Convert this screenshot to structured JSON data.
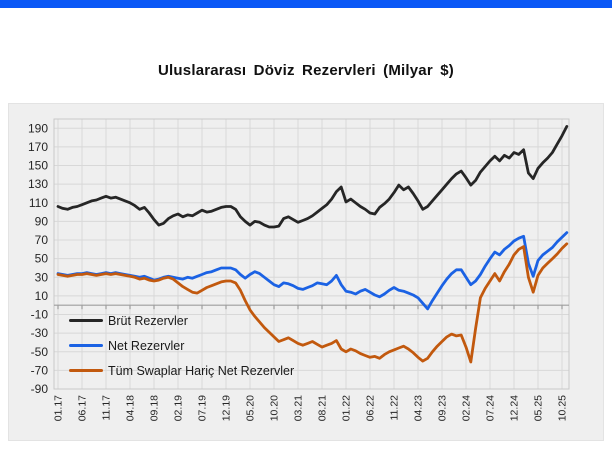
{
  "page": {
    "top_bar_color": "#0a58f6",
    "background_color": "#ffffff",
    "panel_background": "#efefef"
  },
  "chart": {
    "title": "Uluslararası Döviz Rezervleri (Milyar $)"
  },
  "chart_data": {
    "type": "line",
    "title": "Uluslararası Döviz Rezervleri (Milyar $)",
    "unit": "Milyar $",
    "frequency": "monthly",
    "x_start": "01.17",
    "x_end": "11.25",
    "x_labels": [
      "01.17",
      "06.17",
      "11.17",
      "04.18",
      "09.18",
      "02.19",
      "07.19",
      "12.19",
      "05.20",
      "10.20",
      "03.21",
      "08.21",
      "01.22",
      "06.22",
      "11.22",
      "04.23",
      "09.23",
      "02.24",
      "07.24",
      "12.24",
      "05.25",
      "10.25"
    ],
    "x_label_interval_months": 5,
    "y_ticks": [
      190,
      170,
      150,
      130,
      110,
      90,
      70,
      50,
      30,
      10,
      -10,
      -30,
      -50,
      -70,
      -90
    ],
    "ylim": [
      -90,
      200
    ],
    "grid": true,
    "grid_color": "#d8d8d8",
    "zero_axis_color": "#9e9e9e",
    "legend_position": "inside-left-middle",
    "series": [
      {
        "name": "Brüt Rezervler",
        "color": "#262626",
        "values": [
          106,
          104,
          103,
          105,
          106,
          108,
          110,
          112,
          113,
          115,
          117,
          115,
          116,
          114,
          112,
          110,
          107,
          103,
          105,
          99,
          92,
          86,
          88,
          93,
          96,
          98,
          95,
          97,
          96,
          99,
          102,
          100,
          101,
          103,
          105,
          106,
          106,
          103,
          95,
          90,
          86,
          90,
          89,
          86,
          84,
          84,
          85,
          93,
          95,
          92,
          89,
          91,
          93,
          96,
          100,
          104,
          108,
          114,
          122,
          127,
          111,
          114,
          110,
          106,
          103,
          99,
          98,
          105,
          109,
          114,
          121,
          129,
          124,
          127,
          120,
          112,
          103,
          106,
          112,
          118,
          124,
          130,
          136,
          141,
          144,
          137,
          129,
          134,
          143,
          149,
          155,
          160,
          155,
          161,
          158,
          164,
          162,
          167,
          142,
          136,
          147,
          153,
          158,
          164,
          173,
          182,
          192
        ]
      },
      {
        "name": "Net Rezervler",
        "color": "#1b62e4",
        "values": [
          34,
          33,
          32,
          33,
          34,
          34,
          35,
          34,
          33,
          34,
          35,
          34,
          35,
          34,
          33,
          32,
          31,
          30,
          31,
          29,
          27,
          28,
          30,
          31,
          30,
          29,
          28,
          30,
          29,
          31,
          33,
          35,
          36,
          38,
          40,
          40,
          40,
          38,
          33,
          29,
          33,
          36,
          34,
          30,
          26,
          22,
          20,
          24,
          23,
          21,
          18,
          17,
          19,
          21,
          24,
          23,
          22,
          26,
          32,
          22,
          15,
          14,
          12,
          15,
          17,
          14,
          11,
          9,
          12,
          16,
          19,
          16,
          15,
          13,
          11,
          8,
          2,
          -4,
          5,
          13,
          21,
          28,
          34,
          38,
          38,
          30,
          22,
          26,
          33,
          42,
          50,
          57,
          54,
          60,
          64,
          69,
          72,
          74,
          45,
          31,
          48,
          54,
          58,
          62,
          68,
          73,
          78
        ]
      },
      {
        "name": "Tüm Swaplar Hariç Net Rezervler",
        "color": "#c2590e",
        "values": [
          33,
          32,
          31,
          32,
          33,
          33,
          34,
          33,
          32,
          33,
          34,
          33,
          34,
          33,
          32,
          31,
          30,
          28,
          29,
          27,
          26,
          27,
          29,
          30,
          28,
          24,
          20,
          17,
          14,
          13,
          16,
          19,
          21,
          23,
          25,
          26,
          26,
          24,
          16,
          5,
          -5,
          -12,
          -18,
          -24,
          -29,
          -34,
          -39,
          -37,
          -35,
          -38,
          -41,
          -43,
          -41,
          -39,
          -42,
          -45,
          -43,
          -41,
          -38,
          -47,
          -50,
          -47,
          -49,
          -52,
          -54,
          -56,
          -55,
          -57,
          -53,
          -50,
          -48,
          -46,
          -44,
          -47,
          -51,
          -56,
          -60,
          -57,
          -50,
          -44,
          -39,
          -34,
          -31,
          -33,
          -32,
          -45,
          -61,
          -25,
          8,
          18,
          26,
          34,
          26,
          36,
          44,
          54,
          60,
          63,
          30,
          14,
          32,
          40,
          45,
          50,
          55,
          61,
          66
        ]
      }
    ]
  }
}
